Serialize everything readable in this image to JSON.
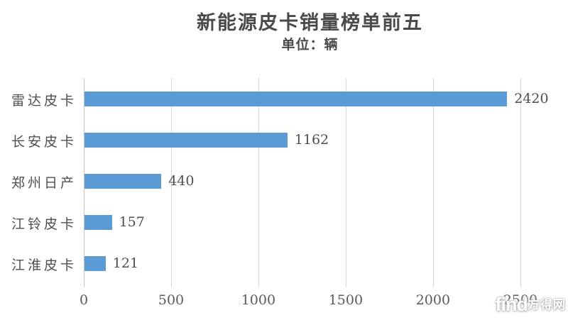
{
  "chart_data": {
    "type": "bar",
    "orientation": "horizontal",
    "title": "新能源皮卡销量榜单前五",
    "subtitle": "单位：辆",
    "categories": [
      "雷达皮卡",
      "长安皮卡",
      "郑州日产",
      "江铃皮卡",
      "江淮皮卡"
    ],
    "values": [
      2420,
      1162,
      440,
      157,
      121
    ],
    "value_labels": [
      "2420",
      "1162",
      "440",
      "157",
      "121"
    ],
    "x_ticks": [
      0,
      500,
      1000,
      1500,
      2000,
      2500
    ],
    "x_tick_labels": [
      "0",
      "500",
      "1000",
      "1500",
      "2000",
      "2500"
    ],
    "xlim": [
      0,
      2590
    ],
    "grid": true,
    "legend": false,
    "bar_color": "#5b9bd5",
    "gridline_color": "#d9d9d9",
    "text_color": "#4f4f4f"
  },
  "watermark": {
    "latin": "find",
    "cjk": "方得网"
  }
}
